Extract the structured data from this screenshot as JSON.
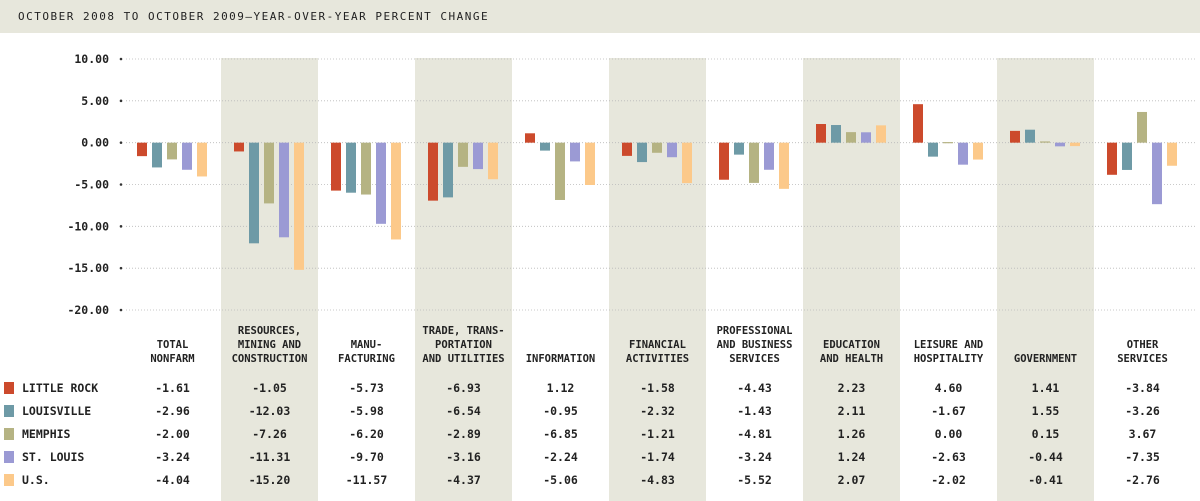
{
  "chart_data": {
    "type": "bar",
    "title": "OCTOBER 2008 TO OCTOBER 2009—YEAR-OVER-YEAR PERCENT CHANGE",
    "ylim": [
      -20,
      10
    ],
    "y_ticks": [
      "10.00",
      "5.00",
      "0.00",
      "-5.00",
      "-10.00",
      "-15.00",
      "-20.00"
    ],
    "grid": true,
    "legend": "table-left",
    "categories": [
      [
        "TOTAL",
        "NONFARM"
      ],
      [
        "RESOURCES,",
        "MINING AND",
        "CONSTRUCTION"
      ],
      [
        "MANU-",
        "FACTURING"
      ],
      [
        "TRADE, TRANS-",
        "PORTATION",
        "AND UTILITIES"
      ],
      [
        "INFORMATION"
      ],
      [
        "FINANCIAL",
        "ACTIVITIES"
      ],
      [
        "PROFESSIONAL",
        "AND BUSINESS",
        "SERVICES"
      ],
      [
        "EDUCATION",
        "AND HEALTH"
      ],
      [
        "LEISURE AND",
        "HOSPITALITY"
      ],
      [
        "GOVERNMENT"
      ],
      [
        "OTHER",
        "SERVICES"
      ]
    ],
    "shaded_categories": [
      1,
      3,
      5,
      7,
      9
    ],
    "series": [
      {
        "name": "LITTLE ROCK",
        "color": "#cc4a2c",
        "values": [
          -1.61,
          -1.05,
          -5.73,
          -6.93,
          1.12,
          -1.58,
          -4.43,
          2.23,
          4.6,
          1.41,
          -3.84
        ],
        "labels": [
          "-1.61",
          "-1.05",
          "-5.73",
          "-6.93",
          "1.12",
          "-1.58",
          "-4.43",
          "2.23",
          "4.60",
          "1.41",
          "-3.84"
        ]
      },
      {
        "name": "LOUISVILLE",
        "color": "#6e9aa6",
        "values": [
          -2.96,
          -12.03,
          -5.98,
          -6.54,
          -0.95,
          -2.32,
          -1.43,
          2.11,
          -1.67,
          1.55,
          -3.26
        ],
        "labels": [
          "-2.96",
          "-12.03",
          "-5.98",
          "-6.54",
          "-0.95",
          "-2.32",
          "-1.43",
          "2.11",
          "-1.67",
          "1.55",
          "-3.26"
        ]
      },
      {
        "name": "MEMPHIS",
        "color": "#b5b383",
        "values": [
          -2.0,
          -7.26,
          -6.2,
          -2.89,
          -6.85,
          -1.21,
          -4.81,
          1.26,
          0.0,
          0.15,
          3.67
        ],
        "labels": [
          "-2.00",
          "-7.26",
          "-6.20",
          "-2.89",
          "-6.85",
          "-1.21",
          "-4.81",
          "1.26",
          "0.00",
          "0.15",
          "3.67"
        ]
      },
      {
        "name": "ST. LOUIS",
        "color": "#9b9ad4",
        "values": [
          -3.24,
          -11.31,
          -9.7,
          -3.16,
          -2.24,
          -1.74,
          -3.24,
          1.24,
          -2.63,
          -0.44,
          -7.35
        ],
        "labels": [
          "-3.24",
          "-11.31",
          "-9.70",
          "-3.16",
          "-2.24",
          "-1.74",
          "-3.24",
          "1.24",
          "-2.63",
          "-0.44",
          "-7.35"
        ]
      },
      {
        "name": "U.S.",
        "color": "#fcc98a",
        "values": [
          -4.04,
          -15.2,
          -11.57,
          -4.37,
          -5.06,
          -4.83,
          -5.52,
          2.07,
          -2.02,
          -0.41,
          -2.76
        ],
        "labels": [
          "-4.04",
          "-15.20",
          "-11.57",
          "-4.37",
          "-5.06",
          "-4.83",
          "-5.52",
          "2.07",
          "-2.02",
          "-0.41",
          "-2.76"
        ]
      }
    ]
  }
}
